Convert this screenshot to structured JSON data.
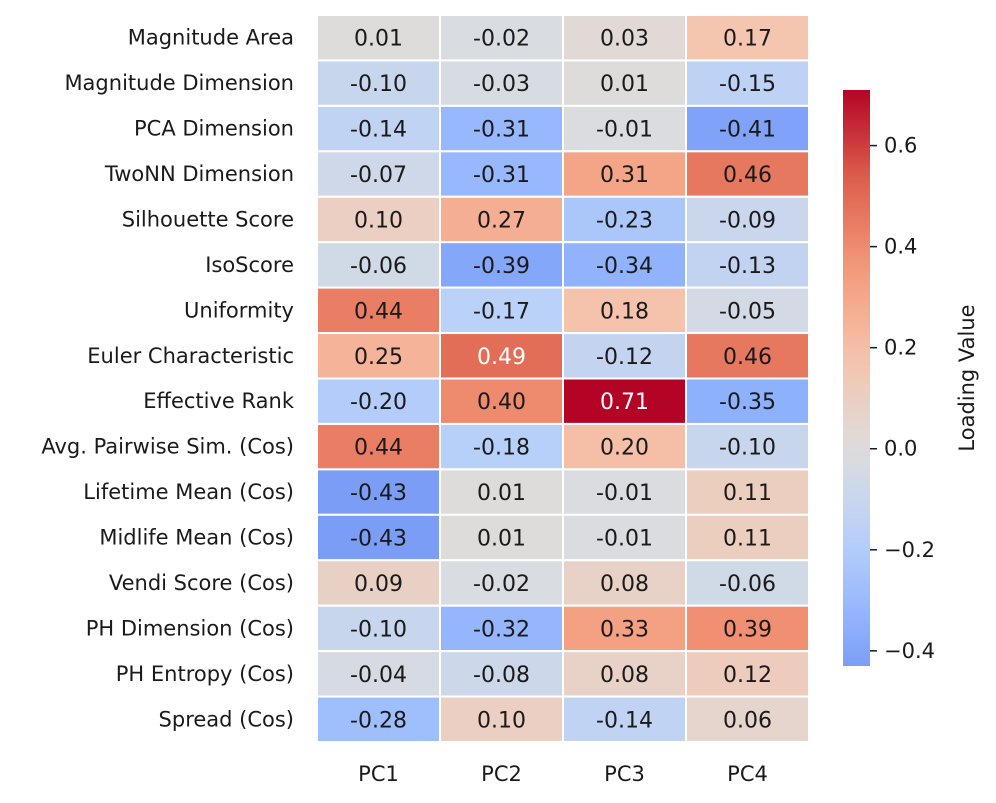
{
  "chart_data": {
    "type": "heatmap",
    "title": "",
    "xlabel": "",
    "ylabel": "",
    "columns": [
      "PC1",
      "PC2",
      "PC3",
      "PC4"
    ],
    "rows": [
      "Magnitude Area",
      "Magnitude Dimension",
      "PCA Dimension",
      "TwoNN Dimension",
      "Silhouette Score",
      "IsoScore",
      "Uniformity",
      "Euler Characteristic",
      "Effective Rank",
      "Avg. Pairwise Sim. (Cos)",
      "Lifetime Mean (Cos)",
      "Midlife Mean (Cos)",
      "Vendi Score (Cos)",
      "PH Dimension (Cos)",
      "PH Entropy (Cos)",
      "Spread (Cos)"
    ],
    "values": [
      [
        0.01,
        -0.02,
        0.03,
        0.17
      ],
      [
        -0.1,
        -0.03,
        0.01,
        -0.15
      ],
      [
        -0.14,
        -0.31,
        -0.01,
        -0.41
      ],
      [
        -0.07,
        -0.31,
        0.31,
        0.46
      ],
      [
        0.1,
        0.27,
        -0.23,
        -0.09
      ],
      [
        -0.06,
        -0.39,
        -0.34,
        -0.13
      ],
      [
        0.44,
        -0.17,
        0.18,
        -0.05
      ],
      [
        0.25,
        0.49,
        -0.12,
        0.46
      ],
      [
        -0.2,
        0.4,
        0.71,
        -0.35
      ],
      [
        0.44,
        -0.18,
        0.2,
        -0.1
      ],
      [
        -0.43,
        0.01,
        -0.01,
        0.11
      ],
      [
        -0.43,
        0.01,
        -0.01,
        0.11
      ],
      [
        0.09,
        -0.02,
        0.08,
        -0.06
      ],
      [
        -0.1,
        -0.32,
        0.33,
        0.39
      ],
      [
        -0.04,
        -0.08,
        0.08,
        0.12
      ],
      [
        -0.28,
        0.1,
        -0.14,
        0.06
      ]
    ],
    "labels": [
      [
        "0.01",
        "-0.02",
        "0.03",
        "0.17"
      ],
      [
        "-0.10",
        "-0.03",
        "0.01",
        "-0.15"
      ],
      [
        "-0.14",
        "-0.31",
        "-0.01",
        "-0.41"
      ],
      [
        "-0.07",
        "-0.31",
        "0.31",
        "0.46"
      ],
      [
        "0.10",
        "0.27",
        "-0.23",
        "-0.09"
      ],
      [
        "-0.06",
        "-0.39",
        "-0.34",
        "-0.13"
      ],
      [
        "0.44",
        "-0.17",
        "0.18",
        "-0.05"
      ],
      [
        "0.25",
        "0.49",
        "-0.12",
        "0.46"
      ],
      [
        "-0.20",
        "0.40",
        "0.71",
        "-0.35"
      ],
      [
        "0.44",
        "-0.18",
        "0.20",
        "-0.10"
      ],
      [
        "-0.43",
        "0.01",
        "-0.01",
        "0.11"
      ],
      [
        "-0.43",
        "0.01",
        "-0.01",
        "0.11"
      ],
      [
        "0.09",
        "-0.02",
        "0.08",
        "-0.06"
      ],
      [
        "-0.10",
        "-0.32",
        "0.33",
        "0.39"
      ],
      [
        "-0.04",
        "-0.08",
        "0.08",
        "0.12"
      ],
      [
        "-0.28",
        "0.10",
        "-0.14",
        "0.06"
      ]
    ],
    "colorbar": {
      "label": "Loading Value",
      "range": [
        -0.43,
        0.71
      ],
      "ticks": [
        0.6,
        0.4,
        0.2,
        0.0,
        -0.2,
        -0.4
      ],
      "tick_labels": [
        "0.6",
        "0.4",
        "0.2",
        "0.0",
        "−0.2",
        "−0.4"
      ],
      "colormap": "coolwarm",
      "center": 0.0
    }
  }
}
